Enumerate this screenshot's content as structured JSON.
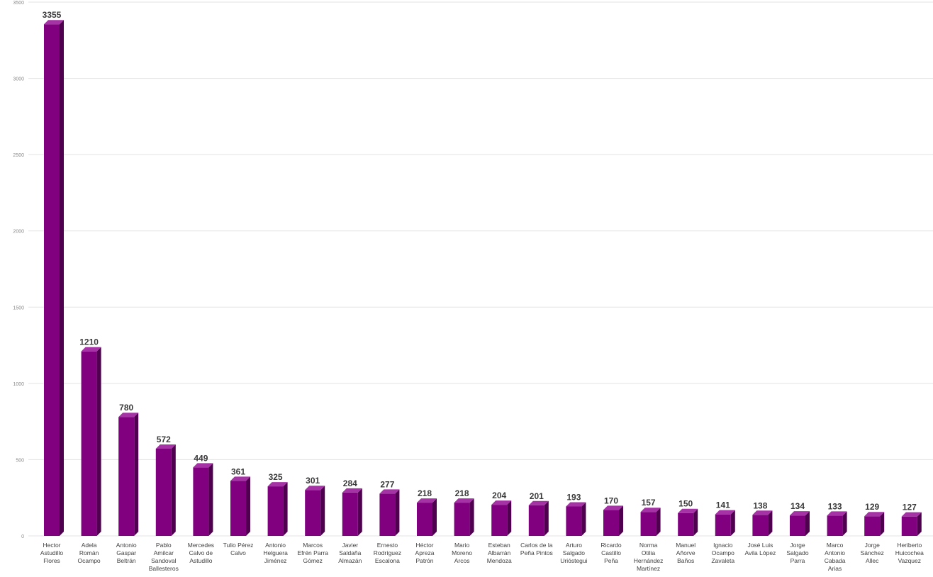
{
  "chart_data": {
    "type": "bar",
    "title": "",
    "xlabel": "",
    "ylabel": "",
    "ylim": [
      0,
      3500
    ],
    "yticks": [
      0,
      500,
      1000,
      1500,
      2000,
      2500,
      3000,
      3500
    ],
    "grid": true,
    "style": "3d-column",
    "colors": {
      "bar_front": "#800080",
      "bar_side": "#4f004f",
      "bar_top": "#a633a6",
      "grid": "#e3e3e3"
    },
    "categories": [
      [
        "Hector",
        "Astudillo",
        "Flores"
      ],
      [
        "Adela",
        "Román",
        "Ocampo"
      ],
      [
        "Antonio",
        "Gaspar",
        "Beltrán"
      ],
      [
        "Pablo",
        "Amilcar",
        "Sandoval",
        "Ballesteros"
      ],
      [
        "Mercedes",
        "Calvo de",
        "Astudillo"
      ],
      [
        "Tulio Pérez",
        "Calvo"
      ],
      [
        "Antonio",
        "Helguera",
        "Jiménez"
      ],
      [
        "Marcos",
        "Efrén Parra",
        "Gómez"
      ],
      [
        "Javier",
        "Saldaña",
        "Almazán"
      ],
      [
        "Ernesto",
        "Rodríguez",
        "Escalona"
      ],
      [
        "Héctor",
        "Apreza",
        "Patrón"
      ],
      [
        "Mario",
        "Moreno",
        "Arcos"
      ],
      [
        "Esteban",
        "Albarrán",
        "Mendoza"
      ],
      [
        "Carlos de la",
        "Peña Pintos"
      ],
      [
        "Arturo",
        "Salgado",
        "Urióstegui"
      ],
      [
        "Ricardo",
        "Castillo",
        "Peña"
      ],
      [
        "Norma",
        "Otilia",
        "Hernández",
        "Martínez"
      ],
      [
        "Manuel",
        "Añorve",
        "Baños"
      ],
      [
        "Ignacio",
        "Ocampo",
        "Zavaleta"
      ],
      [
        "José Luis",
        "Avila López"
      ],
      [
        "Jorge",
        "Salgado",
        "Parra"
      ],
      [
        "Marco",
        "Antonio",
        "Cabada",
        "Arias"
      ],
      [
        "Jorge",
        "Sánchez",
        "Allec"
      ],
      [
        "Heriberto",
        "Huicochea",
        "Vazquez"
      ]
    ],
    "values": [
      3355,
      1210,
      780,
      572,
      449,
      361,
      325,
      301,
      284,
      277,
      218,
      218,
      204,
      201,
      193,
      170,
      157,
      150,
      141,
      138,
      134,
      133,
      129,
      127
    ]
  }
}
